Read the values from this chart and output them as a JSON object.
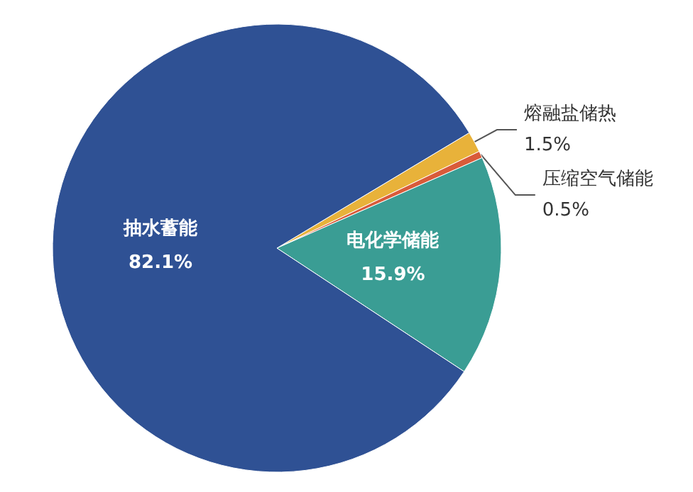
{
  "chart_data": {
    "type": "pie",
    "categories": [
      "熔融盐储热",
      "压缩空气储能",
      "电化学储能",
      "抽水蓄能"
    ],
    "values": [
      1.5,
      0.5,
      15.9,
      82.1
    ],
    "colors": [
      "#e8b23a",
      "#d95b3a",
      "#3a9d94",
      "#2f5194"
    ],
    "value_labels": [
      "1.5%",
      "0.5%",
      "15.9%",
      "82.1%"
    ]
  }
}
